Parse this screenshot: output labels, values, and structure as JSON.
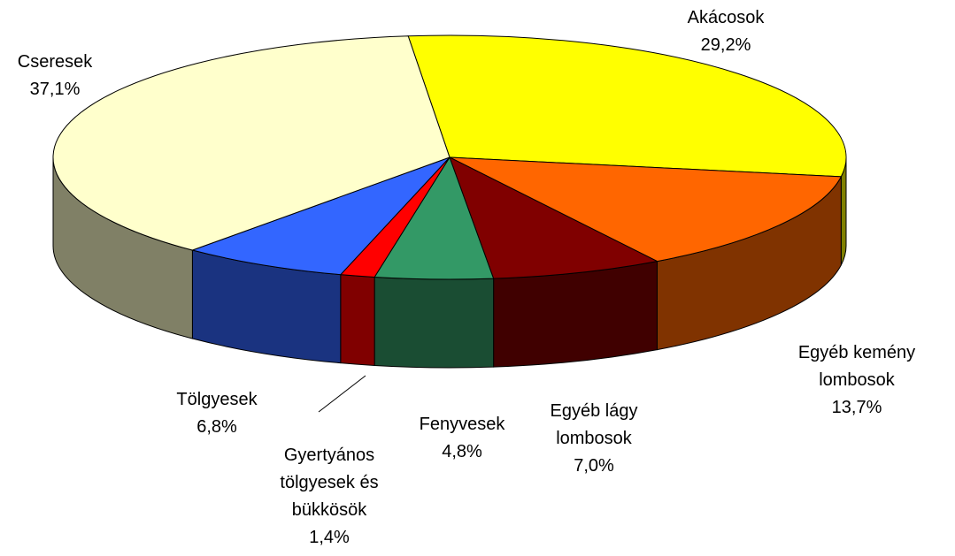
{
  "chart_data": {
    "type": "pie3d",
    "categories": [
      "Akácosok",
      "Egyéb kemény lombosok",
      "Egyéb lágy lombosok",
      "Fenyvesek",
      "Gyertyános tölgyesek és bükkösök",
      "Tölgyesek",
      "Cseresek"
    ],
    "values": [
      29.2,
      13.7,
      7.0,
      4.8,
      1.4,
      6.8,
      37.1
    ],
    "value_labels": [
      "29,2%",
      "13,7%",
      "7,0%",
      "4,8%",
      "1,4%",
      "6,8%",
      "37,1%"
    ],
    "colors": [
      "#ffff00",
      "#ff6600",
      "#800000",
      "#339966",
      "#ff0000",
      "#3366ff",
      "#ffffcc"
    ]
  }
}
